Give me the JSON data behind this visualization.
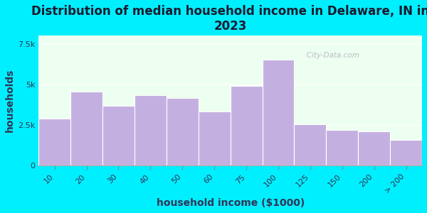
{
  "title": "Distribution of median household income in Delaware, IN in\n2023",
  "xlabel": "household income ($1000)",
  "ylabel": "households",
  "categories": [
    "10",
    "20",
    "30",
    "40",
    "50",
    "60",
    "75",
    "100",
    "125",
    "150",
    "200",
    "> 200"
  ],
  "values": [
    2900,
    4550,
    3700,
    4350,
    4150,
    3350,
    4900,
    6500,
    2550,
    2200,
    2100,
    1600
  ],
  "bar_color": "#c4b0e0",
  "bar_edge_color": "#c4b0e0",
  "ylim": [
    0,
    8000
  ],
  "yticks": [
    0,
    2500,
    5000,
    7500
  ],
  "ytick_labels": [
    "0",
    "2.5k",
    "5k",
    "7.5k"
  ],
  "bg_outer": "#00efff",
  "bg_plot": "#edfff0",
  "title_fontsize": 12,
  "axis_label_fontsize": 10,
  "tick_fontsize": 8,
  "watermark_text": "   City-Data.com",
  "title_color": "#1a1a2e",
  "label_color": "#333355"
}
